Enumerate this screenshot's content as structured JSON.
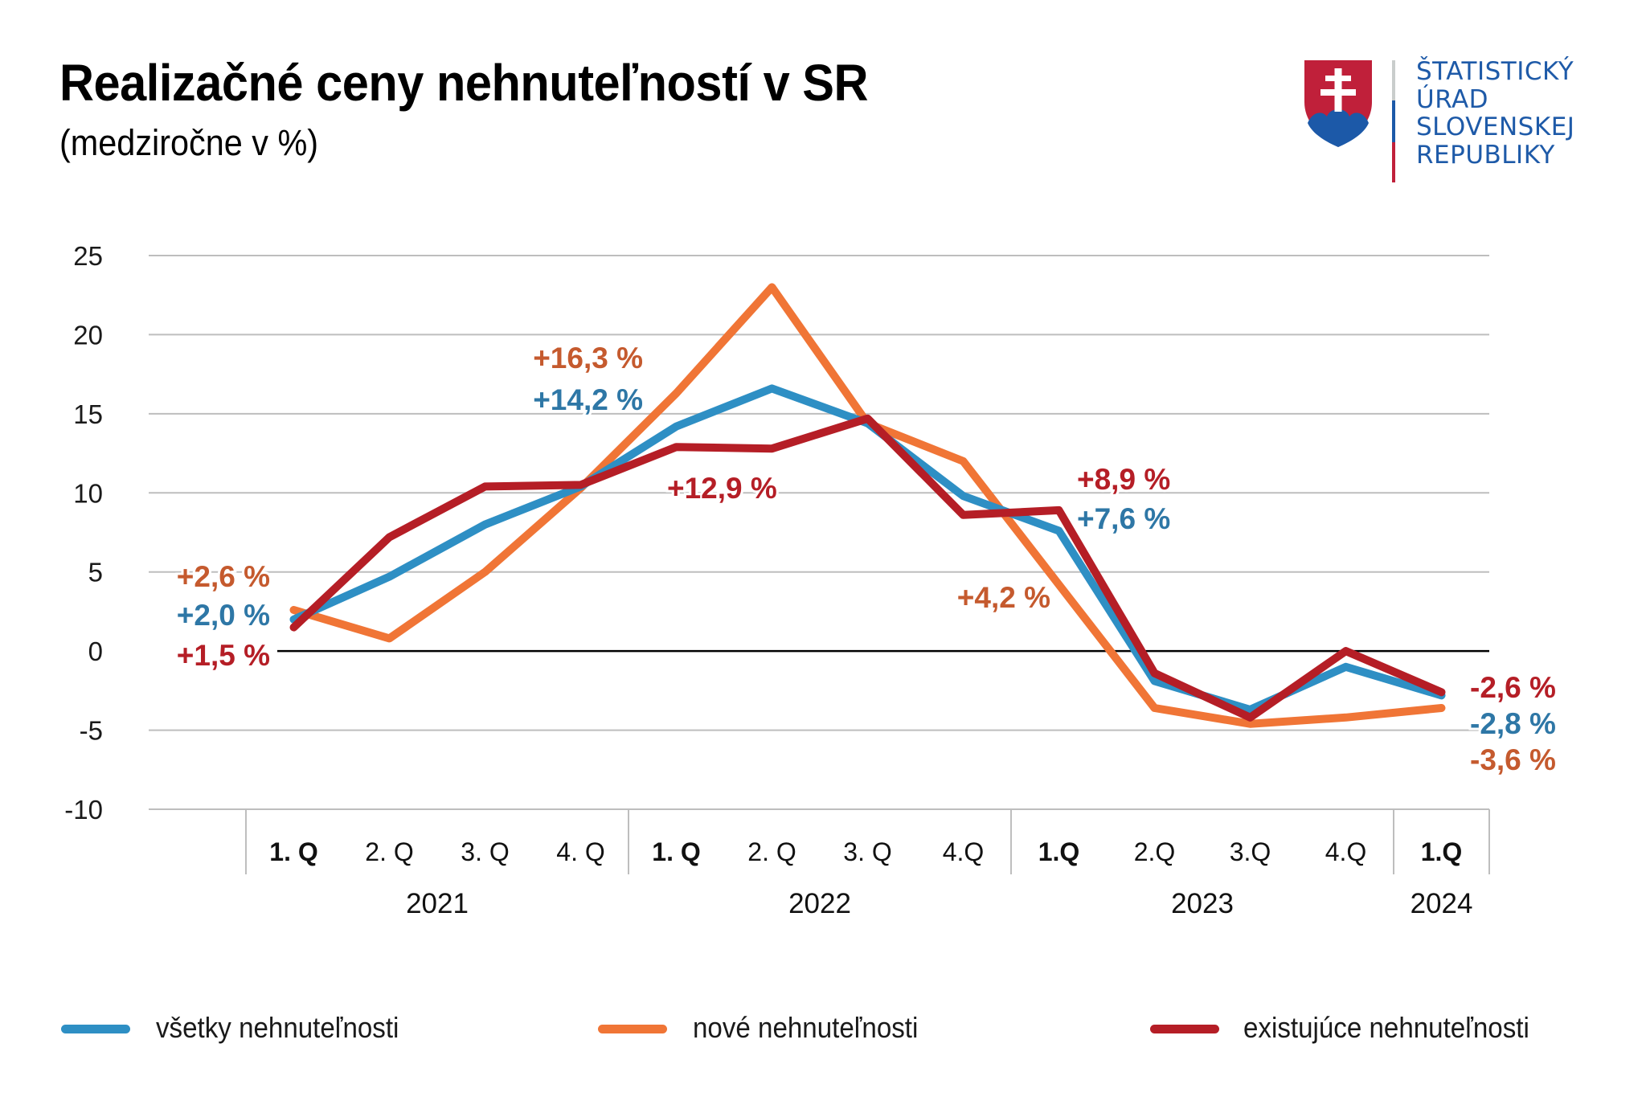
{
  "header": {
    "title": "Realizačné ceny nehnuteľností v SR",
    "subtitle": "(medziročne v %)"
  },
  "logo": {
    "icon": "slovak-coat-of-arms-icon",
    "lines": [
      "ŠTATISTICKÝ",
      "ÚRAD",
      "SLOVENSKEJ",
      "REPUBLIKY"
    ],
    "colors": {
      "text": "#1E5AA8",
      "shield_red": "#C0203A",
      "shield_blue": "#1C59A8",
      "cross": "#FFFFFF"
    }
  },
  "chart_data": {
    "type": "line",
    "title": "Realizačné ceny nehnuteľností v SR",
    "subtitle": "(medziročne v %)",
    "xlabel": "",
    "ylabel": "",
    "ylim": [
      -10,
      25
    ],
    "yticks": [
      25,
      20,
      15,
      10,
      5,
      0,
      -5,
      -10
    ],
    "ytick_labels": [
      "25",
      "20",
      "15",
      "10",
      "5",
      "0",
      "-5",
      "-10"
    ],
    "grid": true,
    "legend_position": "bottom",
    "x": [
      "1. Q",
      "2. Q",
      "3. Q",
      "4. Q",
      "1. Q",
      "2. Q",
      "3. Q",
      "4.Q",
      "1.Q",
      "2.Q",
      "3.Q",
      "4.Q",
      "1.Q"
    ],
    "x_bold": [
      true,
      false,
      false,
      false,
      true,
      false,
      false,
      false,
      true,
      false,
      false,
      false,
      true
    ],
    "year_groups": [
      {
        "label": "2021",
        "count": 4
      },
      {
        "label": "2022",
        "count": 4
      },
      {
        "label": "2023",
        "count": 4
      },
      {
        "label": "2024",
        "count": 1
      }
    ],
    "series": [
      {
        "name": "všetky nehnuteľnosti",
        "color": "#2E8FC4",
        "label_color": "#2E77A6",
        "values": [
          2.0,
          4.7,
          8.0,
          10.4,
          14.2,
          16.6,
          14.4,
          9.8,
          7.6,
          -1.9,
          -3.7,
          -1.0,
          -2.8
        ]
      },
      {
        "name": "nové nehnuteľnosti",
        "color": "#F07536",
        "label_color": "#C55A2E",
        "values": [
          2.6,
          0.8,
          5.0,
          10.3,
          16.3,
          23.0,
          14.4,
          12.0,
          4.2,
          -3.6,
          -4.6,
          -4.2,
          -3.6
        ]
      },
      {
        "name": "existujúce nehnuteľnosti",
        "color": "#B51E26",
        "label_color": "#B51E26",
        "values": [
          1.5,
          7.2,
          10.4,
          10.5,
          12.9,
          12.8,
          14.7,
          8.6,
          8.9,
          -1.4,
          -4.2,
          0.0,
          -2.6
        ]
      }
    ],
    "annotations": [
      {
        "text": "+2,6 %",
        "series": 1,
        "index": 0
      },
      {
        "text": "+2,0 %",
        "series": 0,
        "index": 0
      },
      {
        "text": "+1,5 %",
        "series": 2,
        "index": 0
      },
      {
        "text": "+16,3 %",
        "series": 1,
        "index": 4
      },
      {
        "text": "+14,2 %",
        "series": 0,
        "index": 4
      },
      {
        "text": "+12,9 %",
        "series": 2,
        "index": 4
      },
      {
        "text": "+8,9 %",
        "series": 2,
        "index": 8
      },
      {
        "text": "+7,6 %",
        "series": 0,
        "index": 8
      },
      {
        "text": "+4,2 %",
        "series": 1,
        "index": 8
      },
      {
        "text": "-2,6 %",
        "series": 2,
        "index": 12
      },
      {
        "text": "-2,8 %",
        "series": 0,
        "index": 12
      },
      {
        "text": "-3,6 %",
        "series": 1,
        "index": 12
      }
    ]
  },
  "legend": {
    "items": [
      {
        "label": "všetky nehnuteľnosti",
        "color": "#2E8FC4"
      },
      {
        "label": "nové nehnuteľnosti",
        "color": "#F07536"
      },
      {
        "label": "existujúce nehnuteľnosti",
        "color": "#B51E26"
      }
    ]
  }
}
